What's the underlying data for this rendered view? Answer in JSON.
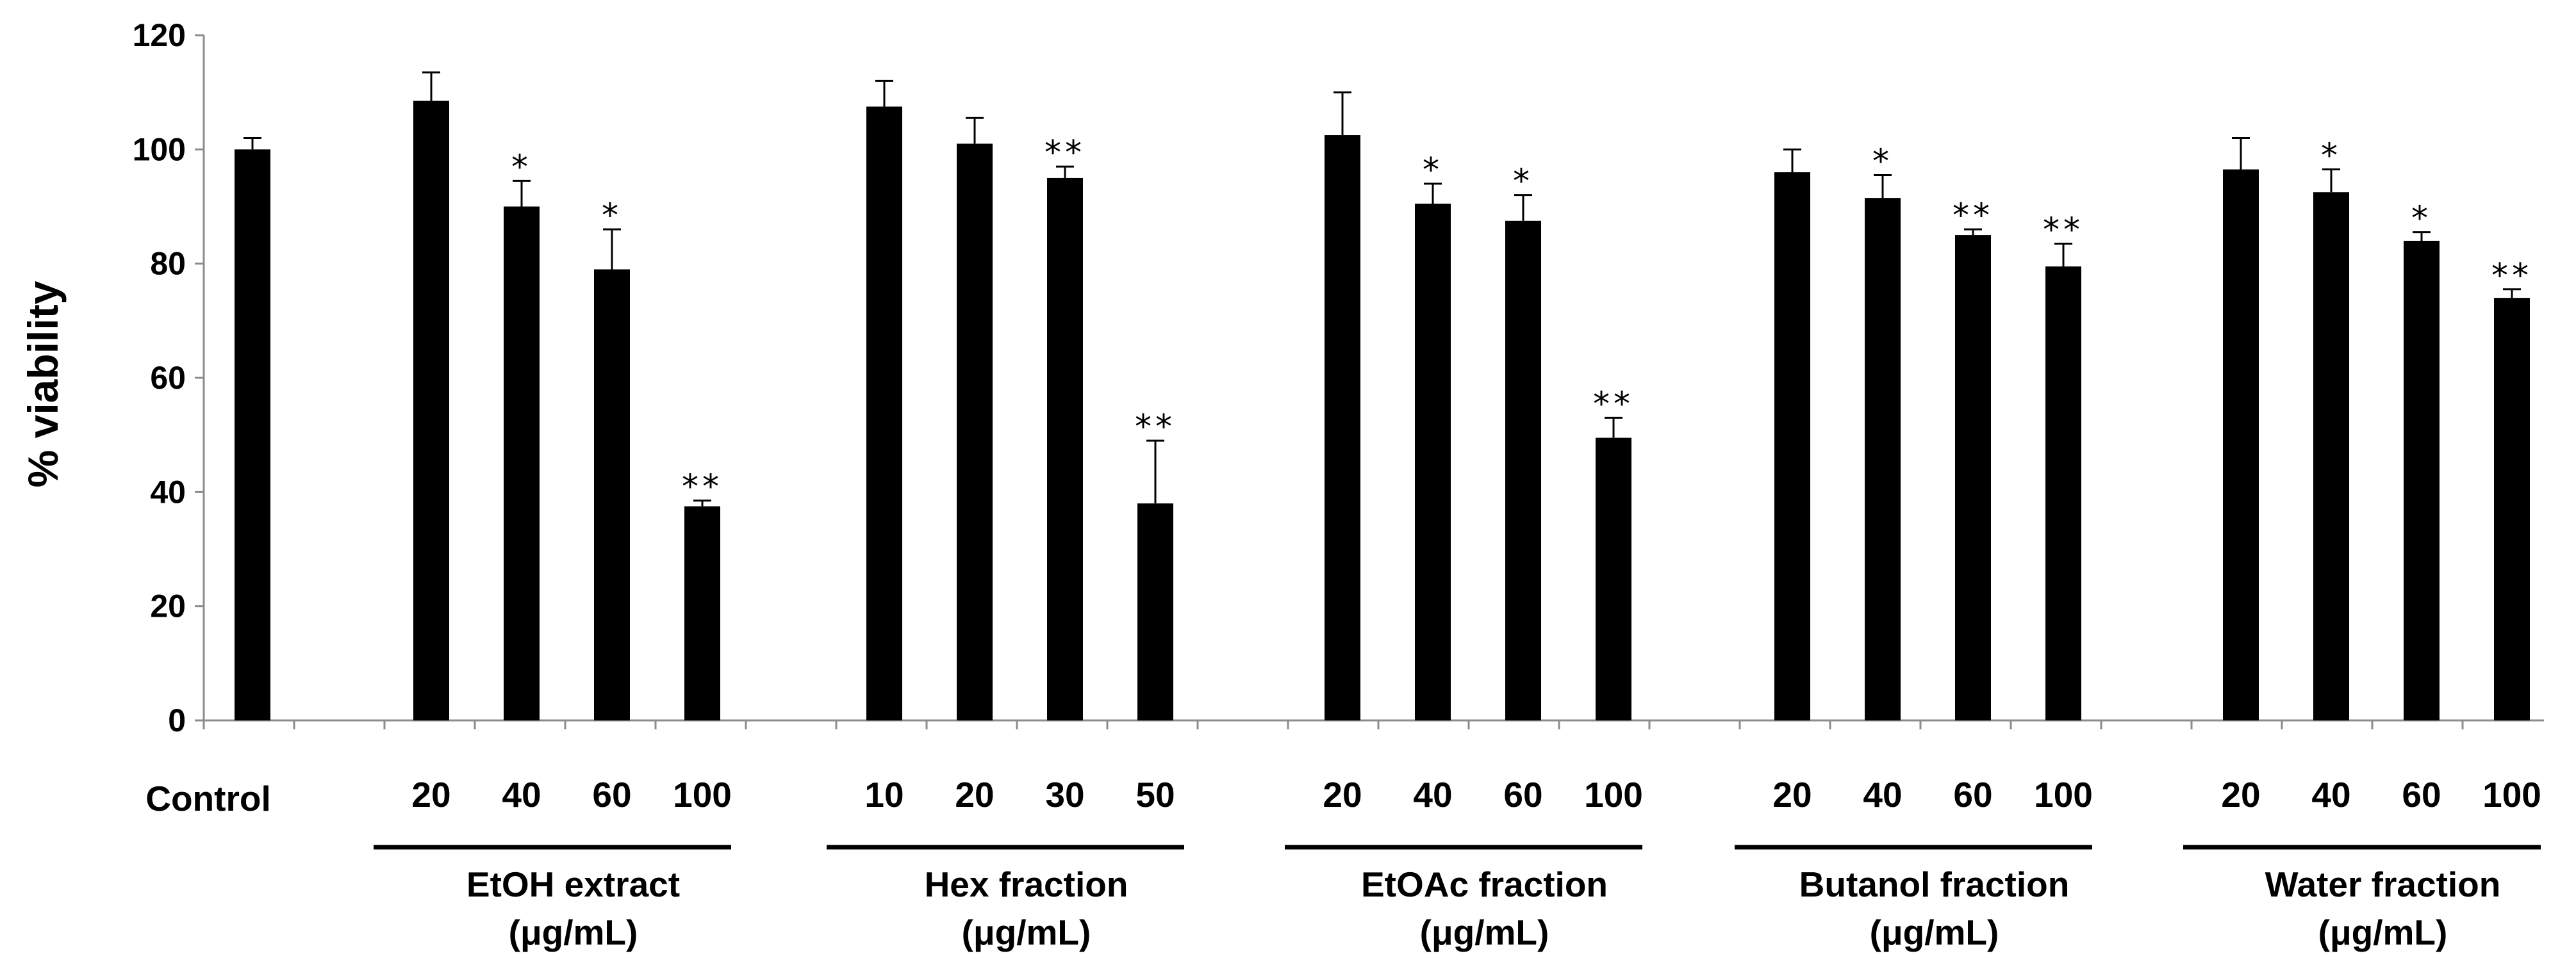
{
  "chart_data": {
    "type": "bar",
    "title": "",
    "xlabel": "",
    "ylabel": "% viability",
    "ylim": [
      0,
      120
    ],
    "yticks": [
      0,
      20,
      40,
      60,
      80,
      100,
      120
    ],
    "grid": false,
    "legend": "none",
    "bar_color": "#000000",
    "control": {
      "label": "Control",
      "value": 100,
      "error": 2,
      "sig": ""
    },
    "groups": [
      {
        "name": "EtOH extract",
        "unit": "(μg/mL)",
        "categories": [
          "20",
          "40",
          "60",
          "100"
        ],
        "values": [
          108.5,
          90,
          79,
          37.5
        ],
        "errors": [
          5,
          4.5,
          7,
          1
        ],
        "significance": [
          "",
          "*",
          "*",
          "**"
        ]
      },
      {
        "name": "Hex fraction",
        "unit": "(μg/mL)",
        "categories": [
          "10",
          "20",
          "30",
          "50"
        ],
        "values": [
          107.5,
          101,
          95,
          38
        ],
        "errors": [
          4.5,
          4.5,
          2,
          11
        ],
        "significance": [
          "",
          "",
          "**",
          "**"
        ]
      },
      {
        "name": "EtOAc fraction",
        "unit": "(μg/mL)",
        "categories": [
          "20",
          "40",
          "60",
          "100"
        ],
        "values": [
          102.5,
          90.5,
          87.5,
          49.5
        ],
        "errors": [
          7.5,
          3.5,
          4.5,
          3.5
        ],
        "significance": [
          "",
          "*",
          "*",
          "**"
        ]
      },
      {
        "name": "Butanol fraction",
        "unit": "(μg/mL)",
        "categories": [
          "20",
          "40",
          "60",
          "100"
        ],
        "values": [
          96,
          91.5,
          85,
          79.5
        ],
        "errors": [
          4,
          4,
          1,
          4
        ],
        "significance": [
          "",
          "*",
          "**",
          "**"
        ]
      },
      {
        "name": "Water fraction",
        "unit": "(μg/mL)",
        "categories": [
          "20",
          "40",
          "60",
          "100"
        ],
        "values": [
          96.5,
          92.5,
          84,
          74
        ],
        "errors": [
          5.5,
          4,
          1.5,
          1.5
        ],
        "significance": [
          "",
          "*",
          "*",
          "**"
        ]
      }
    ]
  }
}
